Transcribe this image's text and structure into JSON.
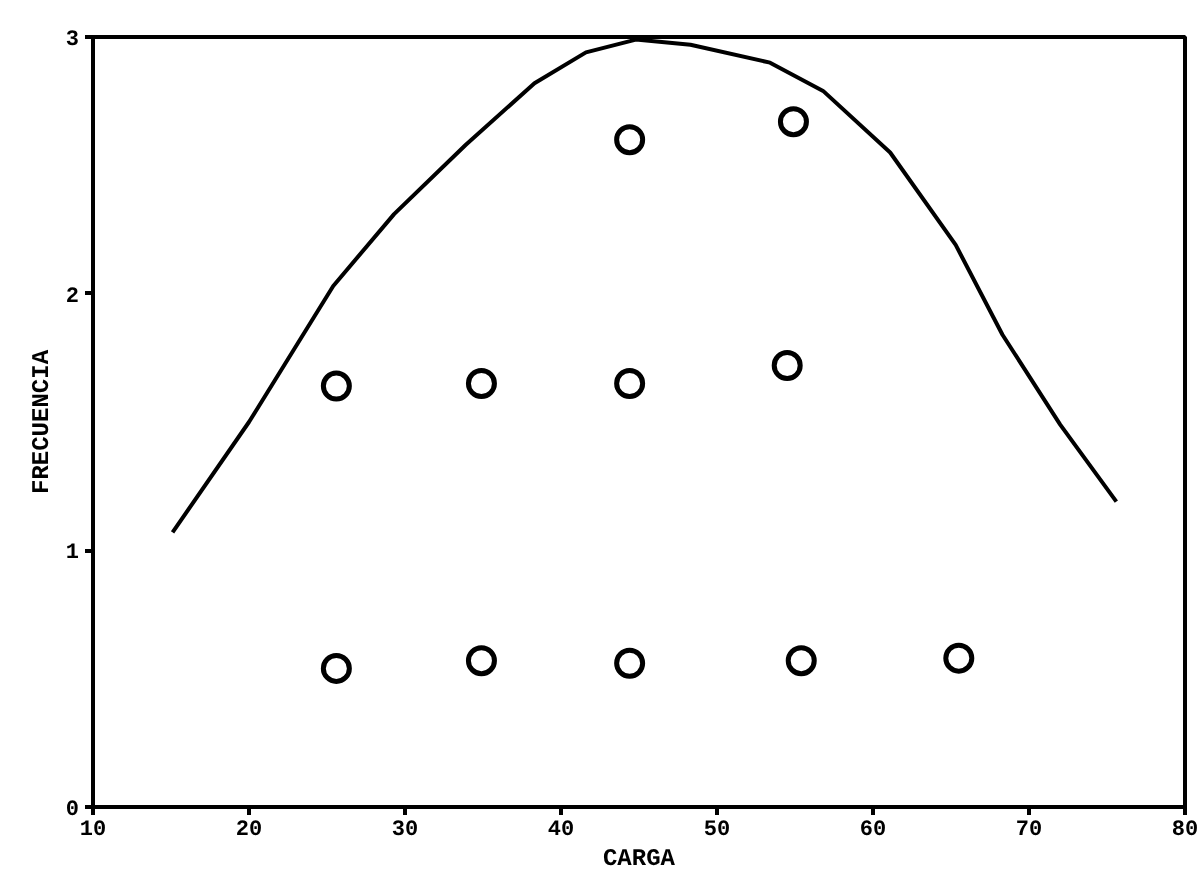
{
  "chart_data": {
    "type": "scatter",
    "xlabel": "CARGA",
    "ylabel": "FRECUENCIA",
    "xlim": [
      10,
      80
    ],
    "ylim": [
      0,
      3
    ],
    "xticks": [
      10,
      20,
      30,
      40,
      50,
      60,
      70,
      80
    ],
    "yticks": [
      0,
      1,
      2,
      3
    ],
    "grid": false,
    "series": [
      {
        "color": "#000000",
        "marker": "circle",
        "x": [
          25.6,
          25.6,
          34.9,
          34.9,
          44.4,
          44.4,
          44.4,
          55.4,
          54.5,
          54.9,
          65.5
        ],
        "values": [
          0.54,
          1.64,
          0.57,
          1.65,
          0.56,
          1.65,
          2.6,
          0.57,
          1.72,
          2.67,
          0.58
        ]
      },
      {
        "type": "line",
        "color": "#000000",
        "line_style": "solid",
        "x": [
          15.1,
          20.0,
          25.4,
          29.3,
          33.9,
          38.3,
          41.6,
          44.8,
          48.3,
          53.4,
          56.8,
          61.1,
          65.3,
          68.3,
          72.0,
          75.6
        ],
        "values": [
          1.07,
          1.5,
          2.03,
          2.31,
          2.58,
          2.82,
          2.94,
          2.99,
          2.97,
          2.9,
          2.79,
          2.55,
          2.19,
          1.84,
          1.49,
          1.19
        ]
      }
    ]
  }
}
